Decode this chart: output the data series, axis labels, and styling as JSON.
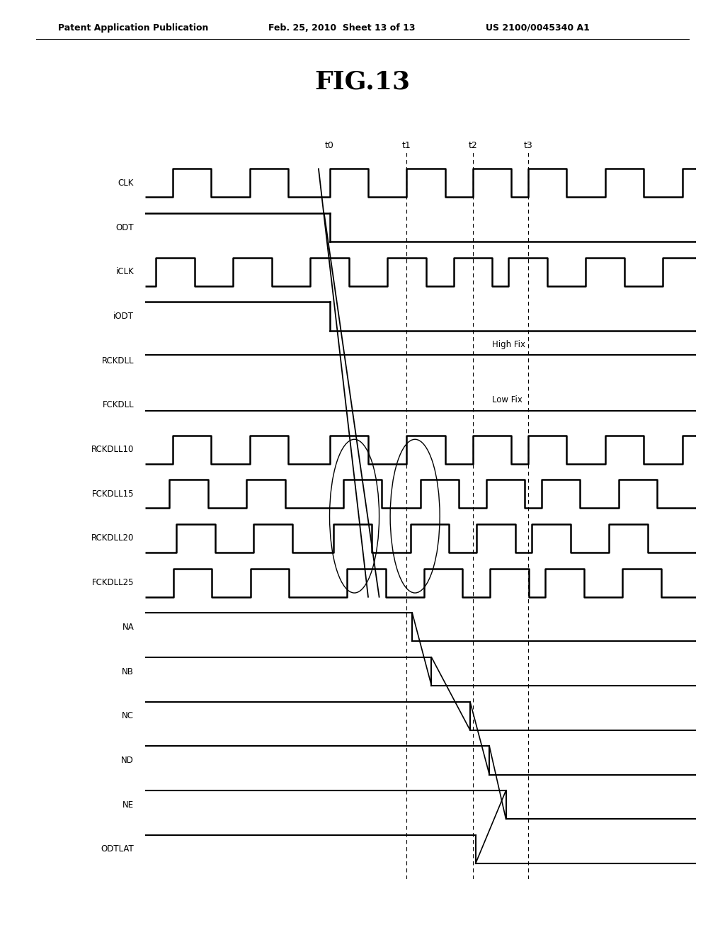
{
  "title": "FIG.13",
  "header_left": "Patent Application Publication",
  "header_mid": "Feb. 25, 2010  Sheet 13 of 13",
  "header_right": "US 2100/0045340 A1",
  "signals": [
    "CLK",
    "ODT",
    "iCLK",
    "iODT",
    "RCKDLL",
    "FCKDLL",
    "RCKDLL10",
    "FCKDLL15",
    "RCKDLL20",
    "FCKDLL25",
    "NA",
    "NB",
    "NC",
    "ND",
    "NE",
    "ODTLAT"
  ],
  "time_labels": [
    "t0",
    "t1",
    "t2",
    "t3"
  ],
  "t0": 0.335,
  "t1": 0.475,
  "t2": 0.595,
  "t3": 0.695,
  "clk_half": 0.07,
  "high_fix_label": "High Fix",
  "low_fix_label": "Low Fix"
}
